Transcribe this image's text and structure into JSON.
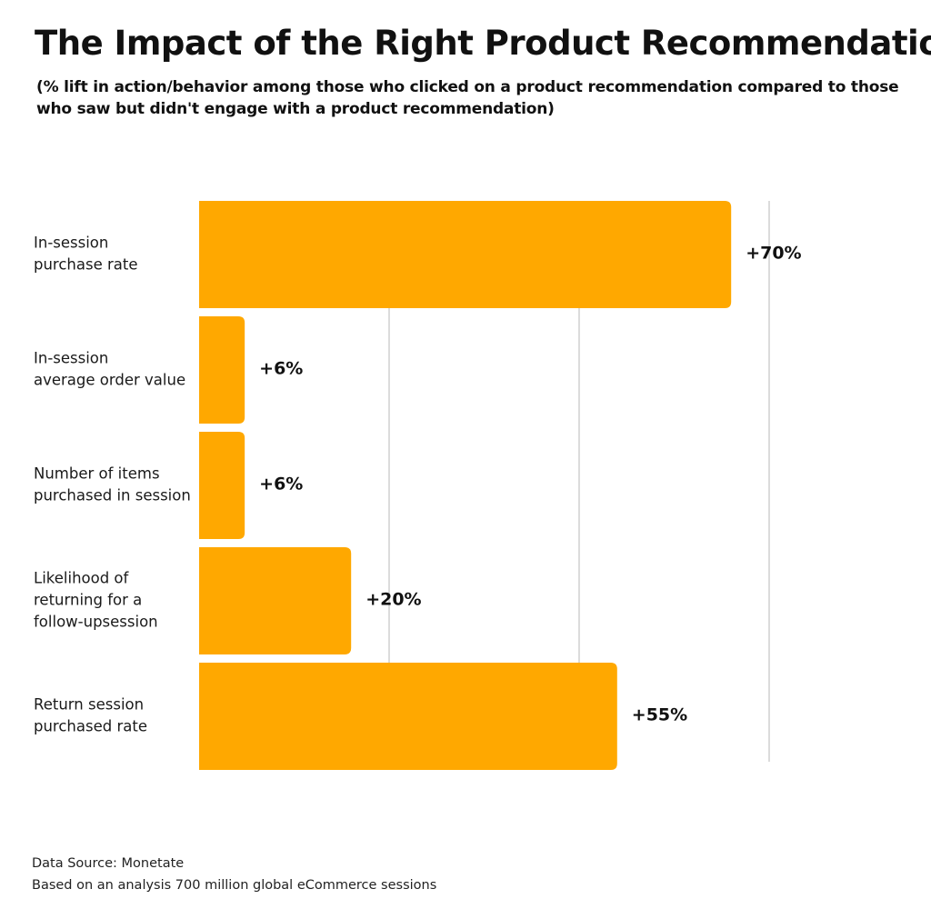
{
  "chart_data": {
    "type": "bar",
    "orientation": "horizontal",
    "title": "The Impact of the Right Product Recommendation",
    "subtitle": "(% lift in action/behavior among those who clicked on a product recommendation compared to those who saw but didn't engage with a product recommendation)",
    "categories": [
      [
        "In-session",
        "purchase rate"
      ],
      [
        "In-session",
        "average order value"
      ],
      [
        "Number of items",
        "purchased in session"
      ],
      [
        "Likelihood of",
        "returning for a",
        "follow-upsession"
      ],
      [
        "Return session",
        "purchased rate"
      ]
    ],
    "values": [
      70,
      6,
      6,
      20,
      55
    ],
    "value_labels": [
      "+70%",
      "+6%",
      "+6%",
      "+20%",
      "+55%"
    ],
    "unit": "%",
    "xlim": [
      0,
      75
    ],
    "gridlines": [
      25,
      50,
      75
    ],
    "grid": true,
    "legend": "none",
    "colors": {
      "bar": "#FFA800",
      "grid": "#c8c8c8"
    }
  },
  "footer": {
    "source": "Data Source: Monetate",
    "note": "Based on an analysis 700 million global eCommerce sessions"
  }
}
